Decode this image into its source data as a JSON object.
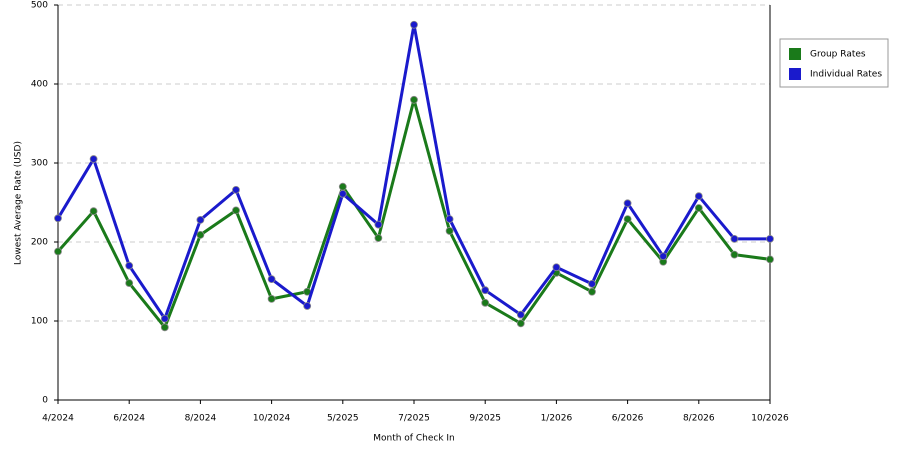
{
  "chart_data": {
    "type": "line",
    "x_label": "Month of Check In",
    "y_label": "Lowest Average Rate (USD)",
    "categories": [
      "4/2024",
      null,
      "6/2024",
      null,
      "8/2024",
      null,
      "10/2024",
      null,
      "5/2025",
      null,
      "7/2025",
      null,
      "9/2025",
      null,
      "1/2026",
      null,
      "6/2026",
      null,
      "8/2026",
      null,
      "10/2026"
    ],
    "series": [
      {
        "name": "Group Rates",
        "color": "#1a7a1a",
        "values": [
          188,
          239,
          148,
          92,
          209,
          240,
          128,
          137,
          270,
          205,
          380,
          214,
          123,
          97,
          161,
          137,
          229,
          175,
          243,
          184,
          178
        ]
      },
      {
        "name": "Individual Rates",
        "color": "#1a1acc",
        "values": [
          230,
          305,
          170,
          103,
          228,
          266,
          153,
          119,
          261,
          222,
          475,
          229,
          139,
          108,
          168,
          147,
          249,
          182,
          258,
          204,
          204
        ]
      }
    ],
    "ylim": [
      0,
      500
    ],
    "yticks": [
      0,
      100,
      200,
      300,
      400,
      500
    ],
    "grid": true,
    "legend": "right"
  }
}
